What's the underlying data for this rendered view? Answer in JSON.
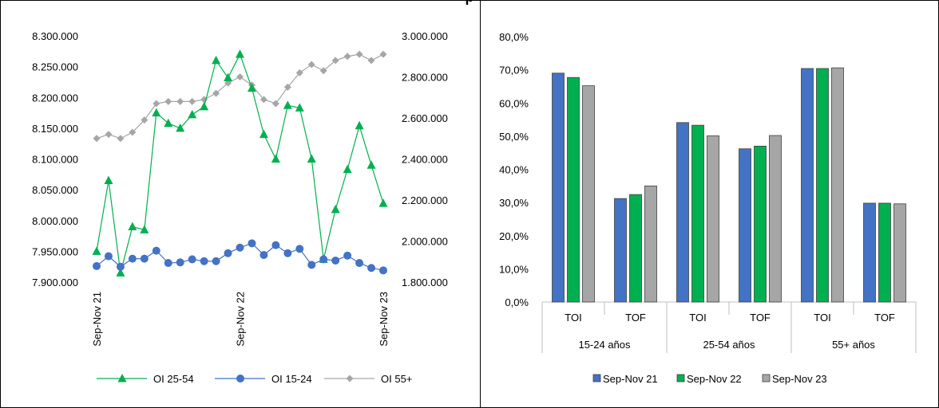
{
  "header": {
    "title_fragment": "p"
  },
  "left_chart_legend": [
    "OI 25-54",
    "OI 15-24",
    "OI 55+"
  ],
  "right_chart_legend": [
    "Sep-Nov 21",
    "Sep-Nov 22",
    "Sep-Nov 23"
  ],
  "colors": {
    "green": "#00b050",
    "blue": "#4472c4",
    "gray": "#a6a6a6",
    "green_bar": "#00b050",
    "blue_bar": "#4472c4",
    "gray_bar": "#a6a6a6"
  },
  "chart_data": [
    {
      "type": "line",
      "title": "",
      "x_tick_labels": [
        "Sep-Nov 21",
        "Sep-Nov 22",
        "Sep-Nov 23"
      ],
      "x_tick_index": [
        0,
        12,
        24
      ],
      "left_axis": {
        "ylim": [
          7900000,
          8300000
        ],
        "ticks": [
          "7.900.000",
          "7.950.000",
          "8.000.000",
          "8.050.000",
          "8.100.000",
          "8.150.000",
          "8.200.000",
          "8.250.000",
          "8.300.000"
        ]
      },
      "right_axis": {
        "ylim": [
          1800000,
          3000000
        ],
        "ticks": [
          "1.800.000",
          "2.000.000",
          "2.200.000",
          "2.400.000",
          "2.600.000",
          "2.800.000",
          "3.000.000"
        ]
      },
      "series": [
        {
          "name": "OI 25-54",
          "axis": "left",
          "marker": "triangle",
          "values": [
            7950000,
            8065000,
            7915000,
            7990000,
            7985000,
            8175000,
            8158000,
            8150000,
            8172000,
            8185000,
            8260000,
            8232000,
            8270000,
            8215000,
            8140000,
            8100000,
            8187000,
            8183000,
            8100000,
            7937000,
            8018000,
            8083000,
            8154000,
            8090000,
            8028000
          ]
        },
        {
          "name": "OI 15-24",
          "axis": "left",
          "marker": "circle",
          "values": [
            7926000,
            7942000,
            7925000,
            7938000,
            7938000,
            7951000,
            7931000,
            7932000,
            7937000,
            7934000,
            7934000,
            7947000,
            7956000,
            7963000,
            7944000,
            7960000,
            7947000,
            7954000,
            7928000,
            7937000,
            7935000,
            7943000,
            7931000,
            7923000,
            7919000
          ]
        },
        {
          "name": "OI 55+",
          "axis": "right",
          "marker": "diamond",
          "values": [
            2500000,
            2520000,
            2500000,
            2530000,
            2590000,
            2670000,
            2680000,
            2680000,
            2680000,
            2690000,
            2720000,
            2770000,
            2800000,
            2760000,
            2690000,
            2670000,
            2750000,
            2820000,
            2860000,
            2830000,
            2880000,
            2900000,
            2910000,
            2880000,
            2910000
          ]
        }
      ]
    },
    {
      "type": "bar",
      "title": "",
      "ylim": [
        0,
        80
      ],
      "y_ticks": [
        "0,0%",
        "10,0%",
        "20,0%",
        "30,0%",
        "40,0%",
        "50,0%",
        "60,0%",
        "70,0%",
        "80,0%"
      ],
      "categories": [
        "TOI",
        "TOF",
        "TOI",
        "TOF",
        "TOI",
        "TOF"
      ],
      "groups": [
        "15-24 años",
        "25-54 años",
        "55+ años"
      ],
      "series": [
        {
          "name": "Sep-Nov 21",
          "values": [
            69.0,
            31.2,
            54.1,
            46.2,
            70.4,
            29.8
          ]
        },
        {
          "name": "Sep-Nov 22",
          "values": [
            67.7,
            32.4,
            53.3,
            47.0,
            70.4,
            29.8
          ]
        },
        {
          "name": "Sep-Nov 23",
          "values": [
            65.2,
            35.0,
            50.1,
            50.2,
            70.6,
            29.6
          ]
        }
      ]
    }
  ]
}
